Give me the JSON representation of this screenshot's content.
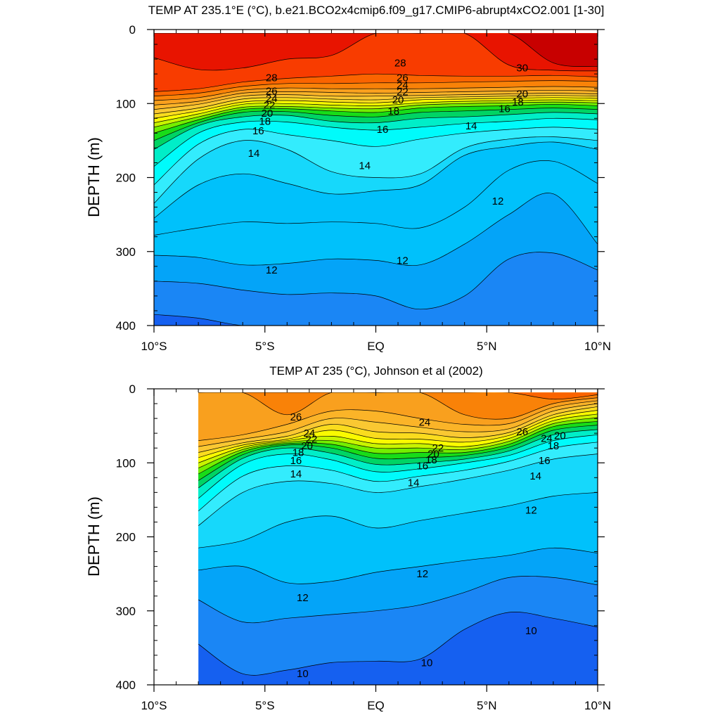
{
  "chart_data": [
    {
      "type": "heatmap",
      "subtype": "filled-contour",
      "title": "TEMP AT 235.1°E (°C), b.e21.BCO2x4cmip6.f09_g17.CMIP6-abrupt4xCO2.001 [1-30]",
      "ylabel": "DEPTH (m)",
      "xlabel": "",
      "x_ticks": [
        -10,
        -5,
        0,
        5,
        10
      ],
      "x_tick_labels": [
        "10°S",
        "5°S",
        "EQ",
        "5°N",
        "10°N"
      ],
      "y_ticks": [
        0,
        100,
        200,
        300,
        400
      ],
      "y_tick_labels": [
        "0",
        "100",
        "200",
        "300",
        "400"
      ],
      "xlim": [
        -10,
        10
      ],
      "ylim": [
        0,
        400
      ],
      "y_inverted": true,
      "data_x_range": [
        -10,
        10
      ],
      "isotherm_spacing": 1,
      "isotherms": [
        {
          "value": 10.5,
          "depth": [
            385,
            390,
            400,
            400,
            400,
            400,
            400,
            400,
            400,
            400,
            400
          ]
        },
        {
          "value": 11,
          "depth": [
            340,
            343,
            352,
            358,
            356,
            360,
            378,
            360,
            310,
            302,
            325
          ]
        },
        {
          "value": 12,
          "depth": [
            305,
            308,
            318,
            316,
            310,
            312,
            318,
            290,
            250,
            222,
            290
          ]
        },
        {
          "value": 12.5,
          "depth": [
            278,
            268,
            260,
            262,
            260,
            262,
            268,
            240,
            190,
            178,
            208
          ]
        },
        {
          "value": 13,
          "depth": [
            255,
            210,
            195,
            208,
            222,
            218,
            210,
            170,
            158,
            152,
            162
          ]
        },
        {
          "value": 14,
          "depth": [
            235,
            175,
            150,
            162,
            192,
            200,
            195,
            160,
            148,
            145,
            150
          ]
        },
        {
          "value": 15,
          "depth": [
            210,
            155,
            135,
            142,
            150,
            158,
            148,
            140,
            135,
            132,
            135
          ]
        },
        {
          "value": 16,
          "depth": [
            185,
            140,
            125,
            125,
            132,
            136,
            132,
            127,
            124,
            120,
            122
          ]
        },
        {
          "value": 17,
          "depth": [
            162,
            130,
            118,
            116,
            124,
            126,
            120,
            118,
            115,
            112,
            114
          ]
        },
        {
          "value": 18,
          "depth": [
            150,
            126,
            112,
            111,
            116,
            118,
            112,
            110,
            108,
            106,
            108
          ]
        },
        {
          "value": 19,
          "depth": [
            140,
            122,
            108,
            107,
            110,
            112,
            106,
            104,
            103,
            101,
            103
          ]
        },
        {
          "value": 20,
          "depth": [
            132,
            118,
            105,
            104,
            106,
            107,
            102,
            100,
            99,
            98,
            99
          ]
        },
        {
          "value": 21,
          "depth": [
            126,
            114,
            101,
            100,
            102,
            103,
            99,
            97,
            96,
            95,
            96
          ]
        },
        {
          "value": 22,
          "depth": [
            120,
            110,
            98,
            96,
            98,
            99,
            95,
            94,
            93,
            92,
            93
          ]
        },
        {
          "value": 23,
          "depth": [
            114,
            106,
            94,
            92,
            94,
            95,
            92,
            91,
            90,
            89,
            90
          ]
        },
        {
          "value": 24,
          "depth": [
            108,
            101,
            90,
            88,
            90,
            90,
            89,
            88,
            87,
            86,
            87
          ]
        },
        {
          "value": 25,
          "depth": [
            102,
            97,
            86,
            84,
            85,
            86,
            85,
            84,
            83,
            82,
            83
          ]
        },
        {
          "value": 26,
          "depth": [
            96,
            92,
            82,
            79,
            80,
            80,
            80,
            79,
            78,
            77,
            78
          ]
        },
        {
          "value": 27,
          "depth": [
            90,
            86,
            77,
            73,
            73,
            72,
            72,
            71,
            70,
            69,
            70
          ]
        },
        {
          "value": 28,
          "depth": [
            84,
            80,
            71,
            66,
            63,
            60,
            62,
            63,
            63,
            62,
            64
          ]
        },
        {
          "value": 29,
          "depth": [
            38,
            54,
            52,
            40,
            35,
            5,
            5,
            5,
            48,
            55,
            56
          ]
        },
        {
          "value": 30,
          "depth": [
            5,
            5,
            5,
            5,
            5,
            5,
            5,
            5,
            5,
            45,
            50
          ]
        }
      ],
      "contour_labels": [
        {
          "text": "30",
          "x": 6.6,
          "depth": 52
        },
        {
          "text": "28",
          "x": 1.1,
          "depth": 45
        },
        {
          "text": "28",
          "x": -4.7,
          "depth": 65
        },
        {
          "text": "26",
          "x": 1.2,
          "depth": 65
        },
        {
          "text": "26",
          "x": -4.7,
          "depth": 83
        },
        {
          "text": "24",
          "x": 1.2,
          "depth": 75
        },
        {
          "text": "24",
          "x": -4.7,
          "depth": 93
        },
        {
          "text": "22",
          "x": 1.2,
          "depth": 84
        },
        {
          "text": "22",
          "x": -4.8,
          "depth": 102
        },
        {
          "text": "20",
          "x": 1.0,
          "depth": 95
        },
        {
          "text": "20",
          "x": -4.9,
          "depth": 113
        },
        {
          "text": "18",
          "x": 0.8,
          "depth": 110
        },
        {
          "text": "18",
          "x": -5.0,
          "depth": 124
        },
        {
          "text": "16",
          "x": 0.3,
          "depth": 135
        },
        {
          "text": "16",
          "x": -5.3,
          "depth": 137
        },
        {
          "text": "16",
          "x": 5.8,
          "depth": 107
        },
        {
          "text": "18",
          "x": 6.4,
          "depth": 98
        },
        {
          "text": "20",
          "x": 6.6,
          "depth": 87
        },
        {
          "text": "14",
          "x": 4.3,
          "depth": 130
        },
        {
          "text": "14",
          "x": -5.5,
          "depth": 167
        },
        {
          "text": "14",
          "x": -0.5,
          "depth": 184
        },
        {
          "text": "12",
          "x": 5.5,
          "depth": 232
        },
        {
          "text": "12",
          "x": 1.2,
          "depth": 312
        },
        {
          "text": "12",
          "x": -4.7,
          "depth": 325
        }
      ]
    },
    {
      "type": "heatmap",
      "subtype": "filled-contour",
      "title": "TEMP AT 235 (°C), Johnson et al (2002)",
      "ylabel": "DEPTH (m)",
      "xlabel": "",
      "x_ticks": [
        -10,
        -5,
        0,
        5,
        10
      ],
      "x_tick_labels": [
        "10°S",
        "5°S",
        "EQ",
        "5°N",
        "10°N"
      ],
      "y_ticks": [
        0,
        100,
        200,
        300,
        400
      ],
      "y_tick_labels": [
        "0",
        "100",
        "200",
        "300",
        "400"
      ],
      "xlim": [
        -10,
        10
      ],
      "ylim": [
        0,
        400
      ],
      "y_inverted": true,
      "data_x_range": [
        -8,
        10
      ],
      "isotherm_spacing": 1,
      "isotherms": [
        {
          "value": 10,
          "depth": [
            345,
            385,
            380,
            370,
            368,
            365,
            325,
            302,
            310,
            322
          ]
        },
        {
          "value": 11,
          "depth": [
            285,
            315,
            310,
            305,
            300,
            292,
            275,
            255,
            255,
            265
          ]
        },
        {
          "value": 12,
          "depth": [
            245,
            240,
            262,
            260,
            248,
            240,
            232,
            225,
            215,
            222
          ]
        },
        {
          "value": 13,
          "depth": [
            215,
            205,
            180,
            172,
            188,
            178,
            168,
            158,
            145,
            140
          ]
        },
        {
          "value": 14,
          "depth": [
            185,
            140,
            125,
            128,
            140,
            132,
            122,
            110,
            95,
            88
          ]
        },
        {
          "value": 15,
          "depth": [
            165,
            118,
            104,
            110,
            125,
            118,
            110,
            98,
            80,
            72
          ]
        },
        {
          "value": 16,
          "depth": [
            148,
            102,
            88,
            96,
            112,
            108,
            100,
            90,
            70,
            62
          ]
        },
        {
          "value": 17,
          "depth": [
            134,
            94,
            80,
            87,
            102,
            100,
            95,
            84,
            62,
            55
          ]
        },
        {
          "value": 18,
          "depth": [
            124,
            89,
            76,
            80,
            94,
            93,
            90,
            79,
            56,
            49
          ]
        },
        {
          "value": 19,
          "depth": [
            115,
            85,
            74,
            75,
            87,
            86,
            86,
            75,
            51,
            44
          ]
        },
        {
          "value": 20,
          "depth": [
            107,
            82,
            72,
            70,
            80,
            80,
            82,
            71,
            47,
            39
          ]
        },
        {
          "value": 21,
          "depth": [
            100,
            79,
            70,
            64,
            74,
            74,
            78,
            67,
            43,
            34
          ]
        },
        {
          "value": 22,
          "depth": [
            93,
            76,
            68,
            56,
            67,
            68,
            72,
            63,
            39,
            29
          ]
        },
        {
          "value": 23,
          "depth": [
            86,
            73,
            64,
            48,
            58,
            60,
            66,
            59,
            35,
            24
          ]
        },
        {
          "value": 24,
          "depth": [
            78,
            68,
            58,
            40,
            45,
            52,
            58,
            54,
            30,
            20
          ]
        },
        {
          "value": 25,
          "depth": [
            70,
            62,
            48,
            30,
            30,
            40,
            48,
            47,
            25,
            16
          ]
        },
        {
          "value": 26,
          "depth": [
            5,
            5,
            35,
            5,
            5,
            5,
            35,
            40,
            20,
            12
          ]
        },
        {
          "value": 27,
          "depth": [
            5,
            5,
            5,
            5,
            5,
            5,
            5,
            5,
            14,
            8
          ]
        }
      ],
      "contour_labels": [
        {
          "text": "26",
          "x": -3.6,
          "depth": 38
        },
        {
          "text": "24",
          "x": 2.2,
          "depth": 45
        },
        {
          "text": "26",
          "x": 6.6,
          "depth": 58
        },
        {
          "text": "24",
          "x": -3.0,
          "depth": 60
        },
        {
          "text": "22",
          "x": -2.9,
          "depth": 68
        },
        {
          "text": "20",
          "x": -3.1,
          "depth": 77
        },
        {
          "text": "18",
          "x": -3.5,
          "depth": 86
        },
        {
          "text": "16",
          "x": -3.6,
          "depth": 97
        },
        {
          "text": "14",
          "x": -3.6,
          "depth": 115
        },
        {
          "text": "22",
          "x": 2.8,
          "depth": 80
        },
        {
          "text": "20",
          "x": 2.6,
          "depth": 88
        },
        {
          "text": "18",
          "x": 2.5,
          "depth": 96
        },
        {
          "text": "16",
          "x": 2.1,
          "depth": 104
        },
        {
          "text": "14",
          "x": 1.7,
          "depth": 127
        },
        {
          "text": "24",
          "x": 7.7,
          "depth": 67
        },
        {
          "text": "20",
          "x": 8.3,
          "depth": 63
        },
        {
          "text": "18",
          "x": 8.0,
          "depth": 77
        },
        {
          "text": "16",
          "x": 7.6,
          "depth": 97
        },
        {
          "text": "14",
          "x": 7.2,
          "depth": 118
        },
        {
          "text": "12",
          "x": 7.0,
          "depth": 164
        },
        {
          "text": "12",
          "x": 2.1,
          "depth": 250
        },
        {
          "text": "12",
          "x": -3.3,
          "depth": 282
        },
        {
          "text": "10",
          "x": 7.0,
          "depth": 327
        },
        {
          "text": "10",
          "x": 2.3,
          "depth": 370
        },
        {
          "text": "10",
          "x": -3.3,
          "depth": 385
        }
      ]
    }
  ],
  "colormap": {
    "levels": [
      9,
      10,
      11,
      12,
      13,
      14,
      15,
      16,
      17,
      18,
      19,
      20,
      21,
      22,
      23,
      24,
      25,
      26,
      27,
      28,
      29,
      30
    ],
    "colors": [
      "#1560f0",
      "#1a86f5",
      "#04a4f8",
      "#00c1fb",
      "#16d8fb",
      "#33ecfd",
      "#00fbfb",
      "#00eec8",
      "#00d464",
      "#18dc18",
      "#74ee00",
      "#c8f400",
      "#fafa00",
      "#fadc1e",
      "#fac832",
      "#fbb428",
      "#f9a01e",
      "#f98208",
      "#fa6400",
      "#f83c00",
      "#e81400",
      "#c80000"
    ]
  }
}
